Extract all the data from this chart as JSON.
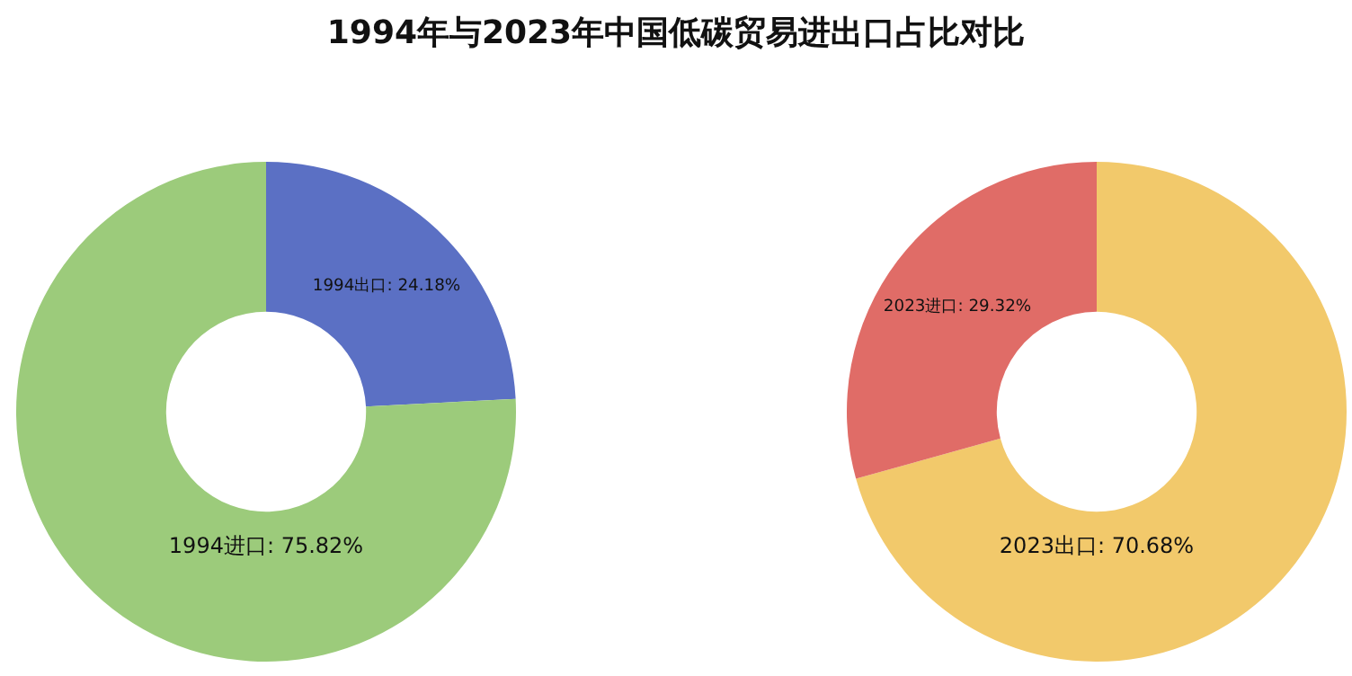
{
  "chart_data": [
    {
      "type": "donut",
      "title": "1994年与2023年中国低碳贸易进出口占比对比",
      "categories": [
        "1994出口",
        "1994进口"
      ],
      "values": [
        24.18,
        75.82
      ],
      "value_labels": [
        "24.18%",
        "75.82%"
      ],
      "colors": [
        "#5b70c4",
        "#9ccb7b"
      ],
      "legend": false
    },
    {
      "type": "donut",
      "categories": [
        "2023出口",
        "2023进口"
      ],
      "values": [
        70.68,
        29.32
      ],
      "value_labels": [
        "70.68%",
        "29.32%"
      ],
      "colors": [
        "#f2c96b",
        "#e06c67"
      ],
      "legend": false
    }
  ]
}
